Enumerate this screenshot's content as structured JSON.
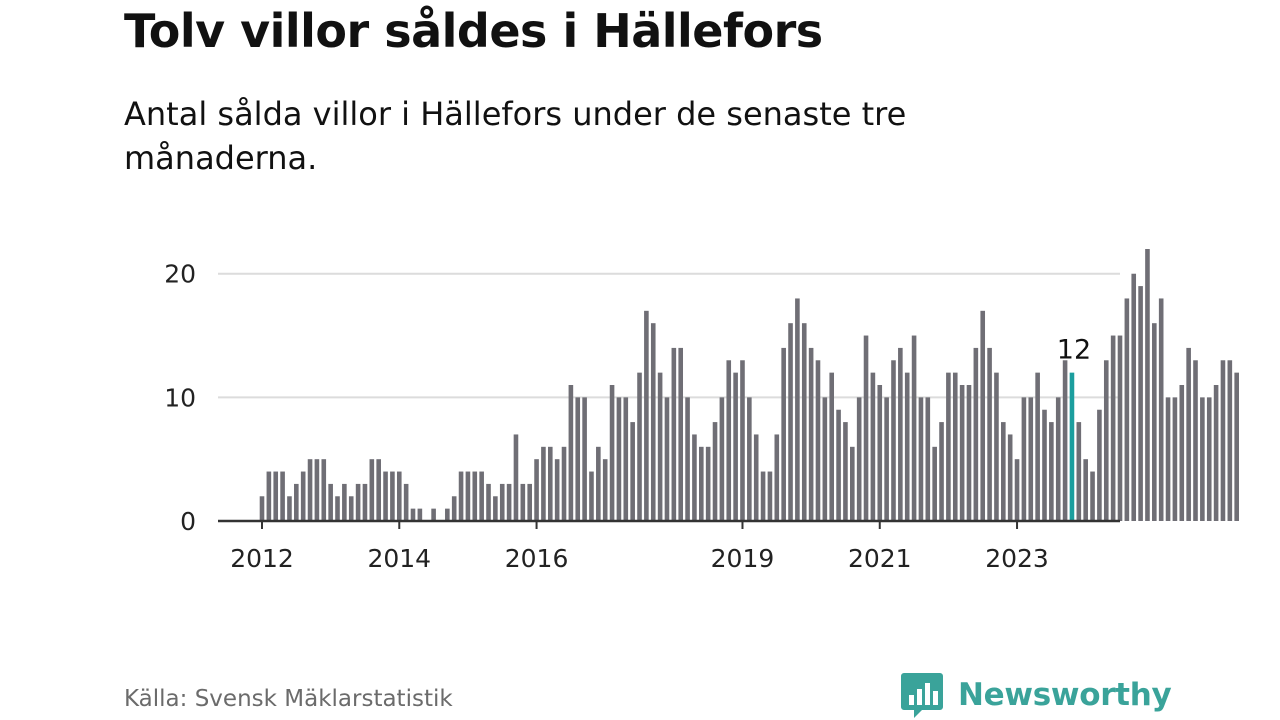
{
  "header": {
    "title": "Tolv villor såldes i Hällefors",
    "subtitle": "Antal sålda villor i Hällefors under de senaste tre månaderna."
  },
  "footer": {
    "source": "Källa: Svensk Mäklarstatistik",
    "brand": "Newsworthy"
  },
  "colors": {
    "bar": "#6f6e75",
    "highlight": "#1b9e9e",
    "grid": "#dcdcdc",
    "axis": "#333333",
    "brand": "#3aa39a"
  },
  "icons": {
    "brand_logo": "bar-chart-speech-bubble-icon"
  },
  "chart_data": {
    "type": "bar",
    "title": "Tolv villor såldes i Hällefors",
    "subtitle": "Antal sålda villor i Hällefors under de senaste tre månaderna.",
    "xlabel": "",
    "ylabel": "",
    "ylim": [
      0,
      22
    ],
    "yticks": [
      0,
      10,
      20
    ],
    "xticks": [
      {
        "label": "2012",
        "index": 0
      },
      {
        "label": "2014",
        "index": 20
      },
      {
        "label": "2016",
        "index": 40
      },
      {
        "label": "2019",
        "index": 70
      },
      {
        "label": "2021",
        "index": 90
      },
      {
        "label": "2023",
        "index": 110
      }
    ],
    "grid": true,
    "highlight_index": 118,
    "annotation": {
      "text": "12",
      "index": 118
    },
    "values": [
      2,
      4,
      4,
      4,
      2,
      3,
      4,
      5,
      5,
      5,
      3,
      2,
      3,
      2,
      3,
      3,
      5,
      5,
      4,
      4,
      4,
      3,
      1,
      1,
      0,
      1,
      0,
      1,
      2,
      4,
      4,
      4,
      4,
      3,
      2,
      3,
      3,
      7,
      3,
      3,
      5,
      6,
      6,
      5,
      6,
      11,
      10,
      10,
      4,
      6,
      5,
      11,
      10,
      10,
      8,
      12,
      17,
      16,
      12,
      10,
      14,
      14,
      10,
      7,
      6,
      6,
      8,
      10,
      13,
      12,
      13,
      10,
      7,
      4,
      4,
      7,
      14,
      16,
      18,
      16,
      14,
      13,
      10,
      12,
      9,
      8,
      6,
      10,
      15,
      12,
      11,
      10,
      13,
      14,
      12,
      15,
      10,
      10,
      6,
      8,
      12,
      12,
      11,
      11,
      14,
      17,
      14,
      12,
      8,
      7,
      5,
      10,
      10,
      12,
      9,
      8,
      10,
      13,
      12,
      8,
      5,
      4,
      9,
      13,
      15,
      15,
      18,
      20,
      19,
      22,
      16,
      18,
      10,
      10,
      11,
      14,
      13,
      10,
      10,
      11,
      13,
      13,
      12
    ]
  }
}
